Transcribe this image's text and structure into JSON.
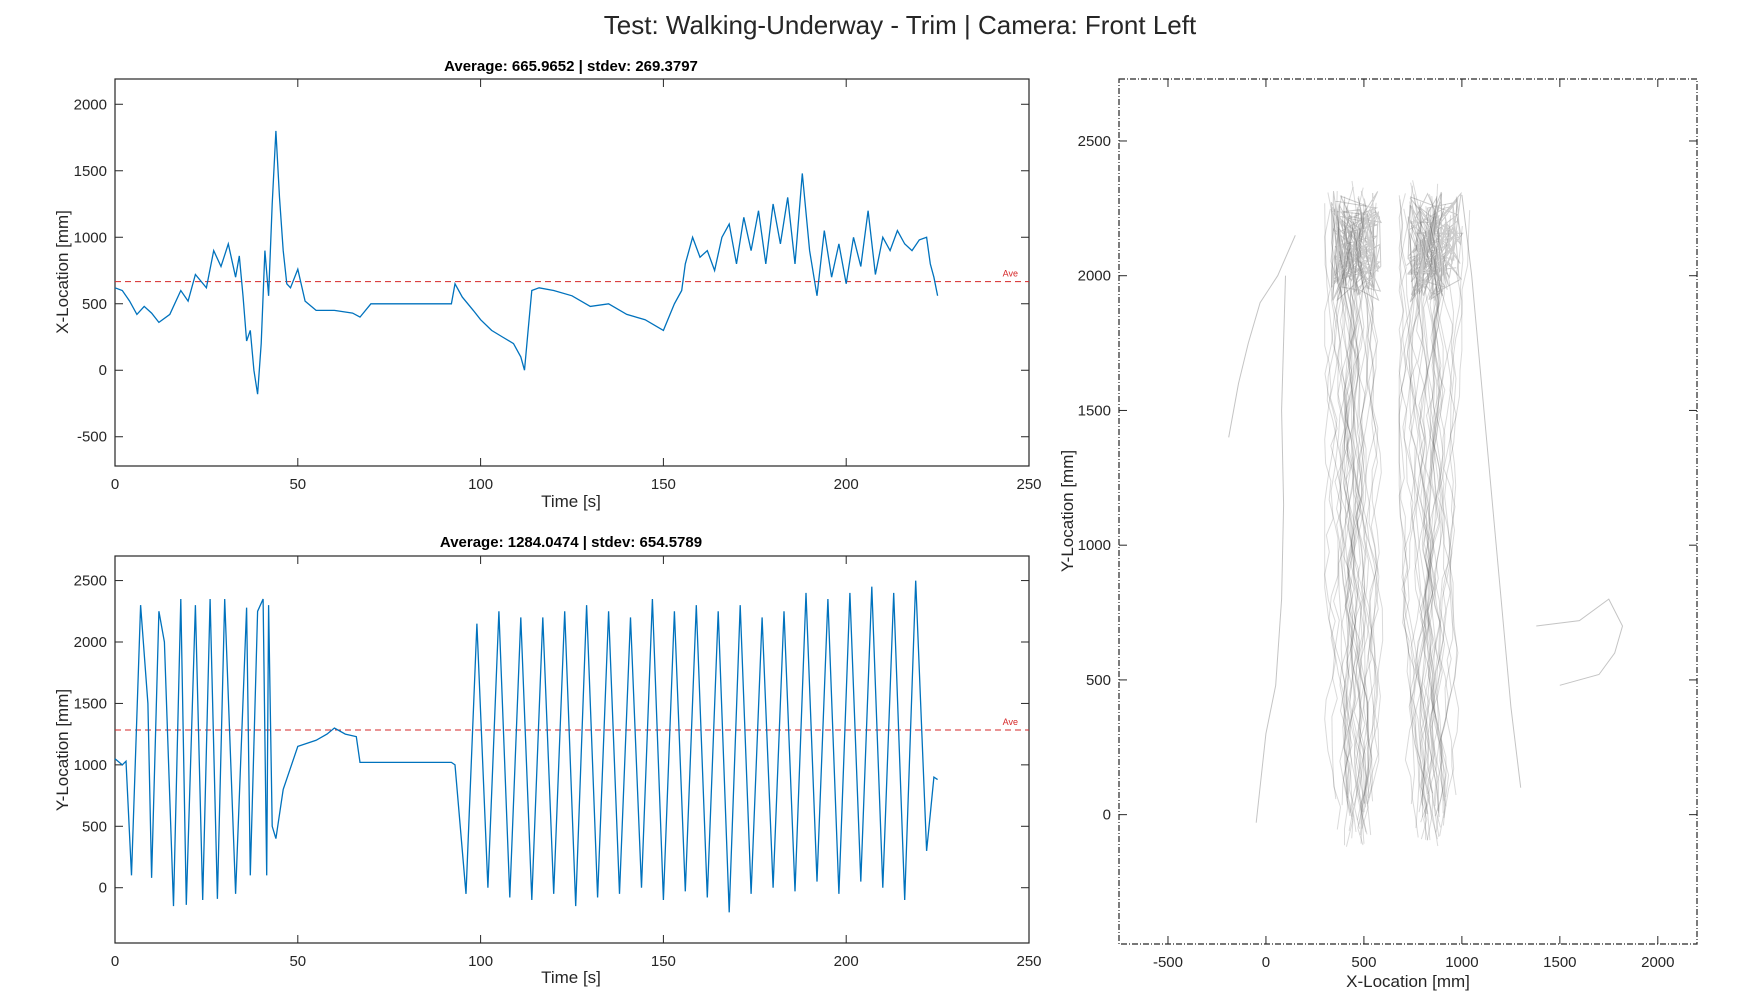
{
  "figure": {
    "title": "Test: Walking-Underway - Trim  |  Camera: Front Left"
  },
  "chart_data": [
    {
      "id": "x_vs_time",
      "type": "line",
      "title": "Average: 665.9652  |  stdev: 269.3797",
      "xlabel": "Time [s]",
      "ylabel": "X-Location [mm]",
      "xlim": [
        0,
        250
      ],
      "ylim": [
        -720,
        2190
      ],
      "xticks": [
        0,
        50,
        100,
        150,
        200,
        250
      ],
      "yticks": [
        -500,
        0,
        500,
        1000,
        1500,
        2000
      ],
      "line_color": "#0072bd",
      "average": 665.9652,
      "average_label": "Ave",
      "average_color": "#d62728",
      "series": [
        {
          "x": [
            0,
            2,
            4,
            6,
            8,
            10,
            12,
            15,
            18,
            20,
            22,
            25,
            27,
            29,
            31,
            33,
            34,
            35,
            36,
            37,
            38,
            39,
            40,
            41,
            42,
            43,
            44,
            45,
            46,
            47,
            48,
            50,
            52,
            55,
            60,
            65,
            67,
            70,
            80,
            92,
            93,
            95,
            98,
            100,
            103,
            106,
            109,
            111,
            112,
            113,
            114,
            116,
            120,
            125,
            130,
            135,
            140,
            145,
            150,
            153,
            155,
            156,
            158,
            160,
            162,
            164,
            166,
            168,
            170,
            172,
            174,
            176,
            178,
            180,
            182,
            184,
            186,
            188,
            190,
            192,
            194,
            196,
            198,
            200,
            202,
            204,
            206,
            208,
            210,
            212,
            214,
            216,
            218,
            220,
            222,
            223,
            224,
            225
          ],
          "y": [
            620,
            600,
            520,
            420,
            480,
            430,
            360,
            420,
            600,
            520,
            720,
            620,
            900,
            780,
            950,
            700,
            860,
            560,
            220,
            300,
            0,
            -180,
            200,
            900,
            560,
            1250,
            1800,
            1300,
            900,
            650,
            620,
            760,
            520,
            450,
            450,
            430,
            400,
            500,
            500,
            500,
            650,
            550,
            450,
            380,
            300,
            250,
            200,
            100,
            0,
            300,
            600,
            620,
            600,
            560,
            480,
            500,
            420,
            380,
            300,
            500,
            600,
            800,
            1000,
            850,
            900,
            750,
            1000,
            1100,
            800,
            1150,
            900,
            1200,
            800,
            1250,
            950,
            1300,
            800,
            1480,
            900,
            560,
            1050,
            700,
            950,
            650,
            1000,
            780,
            1200,
            720,
            1000,
            900,
            1050,
            950,
            900,
            980,
            1000,
            800,
            700,
            560
          ]
        }
      ]
    },
    {
      "id": "y_vs_time",
      "type": "line",
      "title": "Average: 1284.0474  |  stdev: 654.5789",
      "xlabel": "Time [s]",
      "ylabel": "Y-Location [mm]",
      "xlim": [
        0,
        250
      ],
      "ylim": [
        -450,
        2700
      ],
      "xticks": [
        0,
        50,
        100,
        150,
        200,
        250
      ],
      "yticks": [
        0,
        500,
        1000,
        1500,
        2000,
        2500
      ],
      "line_color": "#0072bd",
      "average": 1284.0474,
      "average_label": "Ave",
      "average_color": "#d62728",
      "series": [
        {
          "x": [
            0,
            2,
            3,
            4.5,
            7,
            9,
            10,
            12,
            13.5,
            16,
            18,
            19.5,
            22,
            24,
            26,
            28,
            30,
            33,
            36,
            37,
            39,
            40.5,
            41.5,
            42,
            43,
            44,
            46,
            50,
            55,
            58,
            60,
            63,
            66,
            67,
            80,
            92,
            93,
            96,
            99,
            102,
            105,
            108,
            111,
            114,
            117,
            120,
            123,
            126,
            129,
            132,
            135,
            138,
            141,
            144,
            147,
            150,
            153,
            156,
            159,
            162,
            165,
            168,
            171,
            174,
            177,
            180,
            183,
            186,
            189,
            192,
            195,
            198,
            201,
            204,
            207,
            210,
            213,
            216,
            219,
            222,
            223,
            224,
            225
          ],
          "y": [
            1050,
            1000,
            1030,
            100,
            2300,
            1500,
            80,
            2250,
            2000,
            -150,
            2350,
            -140,
            2300,
            -100,
            2350,
            -90,
            2350,
            -50,
            2280,
            100,
            2250,
            2350,
            100,
            2300,
            500,
            400,
            800,
            1150,
            1200,
            1250,
            1300,
            1250,
            1230,
            1020,
            1020,
            1020,
            1000,
            -50,
            2150,
            0,
            2250,
            -80,
            2200,
            -100,
            2200,
            -50,
            2250,
            -150,
            2300,
            -80,
            2250,
            -50,
            2200,
            0,
            2350,
            -100,
            2250,
            -30,
            2300,
            -80,
            2250,
            -200,
            2300,
            -50,
            2200,
            0,
            2250,
            -30,
            2400,
            50,
            2350,
            -50,
            2400,
            50,
            2450,
            0,
            2400,
            -100,
            2500,
            300,
            600,
            900,
            880
          ]
        }
      ]
    },
    {
      "id": "xy_track",
      "type": "line",
      "xlabel": "X-Location [mm]",
      "ylabel": "Y-Location [mm]",
      "xlim": [
        -750,
        2200
      ],
      "ylim": [
        -480,
        2730
      ],
      "xticks": [
        -500,
        0,
        500,
        1000,
        1500,
        2000
      ],
      "yticks": [
        0,
        500,
        1000,
        1500,
        2000,
        2500
      ],
      "line_color": "#555555",
      "series": [
        {
          "x": [
            -190,
            -140,
            -90,
            -30,
            60,
            150
          ],
          "y": [
            1400,
            1600,
            1750,
            1900,
            2000,
            2150
          ]
        },
        {
          "x": [
            -50,
            0,
            50,
            80,
            90,
            80,
            100
          ],
          "y": [
            -30,
            300,
            480,
            800,
            1150,
            1500,
            2000
          ]
        },
        {
          "x": [
            1380,
            1600,
            1750,
            1820,
            1780,
            1700,
            1500
          ],
          "y": [
            700,
            720,
            800,
            700,
            600,
            520,
            480
          ]
        },
        {
          "x": [
            1300,
            1250,
            1200,
            1150,
            1100,
            1050,
            1000
          ],
          "y": [
            100,
            400,
            800,
            1200,
            1600,
            2000,
            2300
          ]
        }
      ]
    }
  ]
}
